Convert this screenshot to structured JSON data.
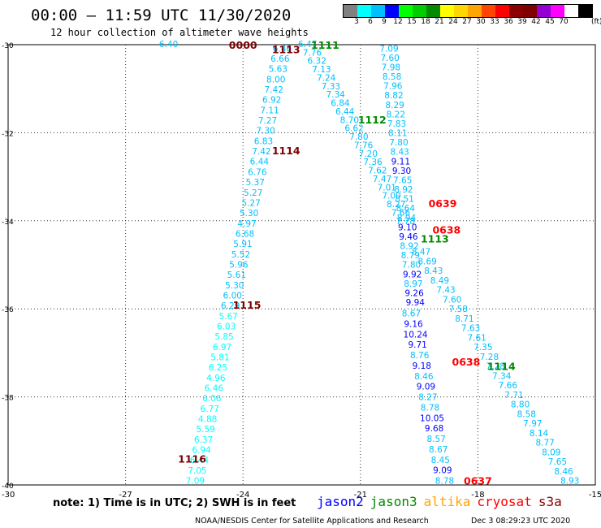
{
  "title": "00:00 – 11:59 UTC 11/30/2020",
  "subtitle": "12 hour collection of altimeter wave heights",
  "legend": {
    "unit": "(ft)",
    "colors": [
      "#808080",
      "#00ffff",
      "#00bfff",
      "#0000ff",
      "#00ff00",
      "#00cd00",
      "#008b00",
      "#ffff00",
      "#ffd700",
      "#ffa500",
      "#ff4500",
      "#ff0000",
      "#8b0000",
      "#800000",
      "#9400d3",
      "#ff00ff",
      "#ffffff",
      "#000000"
    ],
    "labels": [
      "3",
      "6",
      "9",
      "12",
      "15",
      "18",
      "21",
      "24",
      "27",
      "30",
      "33",
      "36",
      "39",
      "42",
      "45",
      "70"
    ]
  },
  "chart_data": {
    "type": "scatter",
    "xlim": [
      -30,
      -15
    ],
    "ylim": [
      -40,
      -30
    ],
    "x_ticks": [
      "-27",
      "-24",
      "-21",
      "-18",
      "-15"
    ],
    "y_ticks": [
      "-30",
      "-32",
      "-34",
      "-36",
      "-38",
      "-40"
    ],
    "x_tick_values": [
      -27,
      -24,
      -21,
      -18,
      -15
    ],
    "y_tick_values": [
      -30,
      -32,
      -34,
      -36,
      -38,
      -40
    ],
    "corner_label": "-30",
    "grid": true,
    "time_labels": [
      {
        "text": "0000",
        "lon": -24.0,
        "lat": -30.0,
        "color": "#800000"
      },
      {
        "text": "1113",
        "lon": -22.9,
        "lat": -30.1,
        "color": "#800000"
      },
      {
        "text": "1111",
        "lon": -21.9,
        "lat": -30.0,
        "color": "#008b00"
      },
      {
        "text": "1112",
        "lon": -20.7,
        "lat": -31.7,
        "color": "#008b00"
      },
      {
        "text": "1114",
        "lon": -22.9,
        "lat": -32.4,
        "color": "#800000"
      },
      {
        "text": "0639",
        "lon": -18.9,
        "lat": -33.6,
        "color": "#ff0000"
      },
      {
        "text": "0638",
        "lon": -18.8,
        "lat": -34.2,
        "color": "#ff0000"
      },
      {
        "text": "1113",
        "lon": -19.1,
        "lat": -34.4,
        "color": "#008b00"
      },
      {
        "text": "1115",
        "lon": -23.9,
        "lat": -35.9,
        "color": "#800000"
      },
      {
        "text": "0638",
        "lon": -18.3,
        "lat": -37.2,
        "color": "#ff0000"
      },
      {
        "text": "1114",
        "lon": -17.4,
        "lat": -37.3,
        "color": "#008b00"
      },
      {
        "text": "1116",
        "lon": -25.3,
        "lat": -39.4,
        "color": "#800000"
      },
      {
        "text": "0637",
        "lon": -18.0,
        "lat": -39.9,
        "color": "#ff0000"
      }
    ],
    "tracks": [
      {
        "start": [
          -25.9,
          -29.98
        ],
        "end": [
          -26.0,
          -30.0
        ],
        "values": [
          {
            "v": "6.40",
            "c": "#00bfff"
          }
        ]
      },
      {
        "start": [
          -23.0,
          -30.08
        ],
        "end": [
          -25.22,
          -39.9
        ],
        "values": [
          {
            "v": "6.46",
            "c": "#00bfff"
          },
          {
            "v": "6.66",
            "c": "#00bfff"
          },
          {
            "v": "5.63",
            "c": "#00bfff"
          },
          {
            "v": "8.00",
            "c": "#00bfff"
          },
          {
            "v": "7.42",
            "c": "#00bfff"
          },
          {
            "v": "6.92",
            "c": "#00bfff"
          },
          {
            "v": "7.11",
            "c": "#00bfff"
          },
          {
            "v": "7.27",
            "c": "#00bfff"
          },
          {
            "v": "7.30",
            "c": "#00bfff"
          },
          {
            "v": "6.83",
            "c": "#00bfff"
          },
          {
            "v": "7.42",
            "c": "#00bfff"
          },
          {
            "v": "6.44",
            "c": "#00bfff"
          },
          {
            "v": "6.76",
            "c": "#00bfff"
          },
          {
            "v": "5.37",
            "c": "#00bfff"
          },
          {
            "v": "5.27",
            "c": "#00bfff"
          },
          {
            "v": "5.27",
            "c": "#00bfff"
          },
          {
            "v": "5.30",
            "c": "#00bfff"
          },
          {
            "v": "4.97",
            "c": "#00bfff"
          },
          {
            "v": "6.68",
            "c": "#00bfff"
          },
          {
            "v": "5.91",
            "c": "#00bfff"
          },
          {
            "v": "5.52",
            "c": "#00bfff"
          },
          {
            "v": "5.96",
            "c": "#00bfff"
          },
          {
            "v": "5.61",
            "c": "#00bfff"
          },
          {
            "v": "5.30",
            "c": "#00bfff"
          },
          {
            "v": "6.00",
            "c": "#00bfff"
          },
          {
            "v": "6.29",
            "c": "#00bfff"
          },
          {
            "v": "5.67",
            "c": "#00ffff"
          },
          {
            "v": "6.03",
            "c": "#00ffff"
          },
          {
            "v": "5.85",
            "c": "#00ffff"
          },
          {
            "v": "6.97",
            "c": "#00ffff"
          },
          {
            "v": "5.81",
            "c": "#00ffff"
          },
          {
            "v": "6.25",
            "c": "#00ffff"
          },
          {
            "v": "4.96",
            "c": "#00ffff"
          },
          {
            "v": "6.46",
            "c": "#00ffff"
          },
          {
            "v": "6.06",
            "c": "#00ffff"
          },
          {
            "v": "6.77",
            "c": "#00ffff"
          },
          {
            "v": "4.88",
            "c": "#00ffff"
          },
          {
            "v": "5.59",
            "c": "#00ffff"
          },
          {
            "v": "6.37",
            "c": "#00ffff"
          },
          {
            "v": "6.94",
            "c": "#00ffff"
          },
          {
            "v": "6.44",
            "c": "#00ffff"
          },
          {
            "v": "7.05",
            "c": "#00ffff"
          },
          {
            "v": "7.09",
            "c": "#00ffff"
          }
        ]
      },
      {
        "start": [
          -22.35,
          -29.98
        ],
        "end": [
          -19.85,
          -34.0
        ],
        "values": [
          {
            "v": "6.47",
            "c": "#00bfff"
          },
          {
            "v": "7.76",
            "c": "#00bfff"
          },
          {
            "v": "6.32",
            "c": "#00bfff"
          },
          {
            "v": "7.13",
            "c": "#00bfff"
          },
          {
            "v": "7.24",
            "c": "#00bfff"
          },
          {
            "v": "7.33",
            "c": "#00bfff"
          },
          {
            "v": "7.34",
            "c": "#00bfff"
          },
          {
            "v": "6.84",
            "c": "#00bfff"
          },
          {
            "v": "6.44",
            "c": "#00bfff"
          },
          {
            "v": "8.70",
            "c": "#00bfff"
          },
          {
            "v": "6.62",
            "c": "#00bfff"
          },
          {
            "v": "7.80",
            "c": "#00bfff"
          },
          {
            "v": "7.76",
            "c": "#00bfff"
          },
          {
            "v": "7.20",
            "c": "#00bfff"
          },
          {
            "v": "7.36",
            "c": "#00bfff"
          },
          {
            "v": "7.62",
            "c": "#00bfff"
          },
          {
            "v": "7.47",
            "c": "#00bfff"
          },
          {
            "v": "7.01",
            "c": "#00bfff"
          },
          {
            "v": "7.00",
            "c": "#00bfff"
          },
          {
            "v": "8.27",
            "c": "#00bfff"
          },
          {
            "v": "7.66",
            "c": "#00bfff"
          },
          {
            "v": "7.78",
            "c": "#00bfff"
          }
        ]
      },
      {
        "start": [
          -20.27,
          -30.08
        ],
        "end": [
          -19.6,
          -35.85
        ],
        "values": [
          {
            "v": "7.09",
            "c": "#00bfff"
          },
          {
            "v": "7.60",
            "c": "#00bfff"
          },
          {
            "v": "7.98",
            "c": "#00bfff"
          },
          {
            "v": "8.58",
            "c": "#00bfff"
          },
          {
            "v": "7.96",
            "c": "#00bfff"
          },
          {
            "v": "8.82",
            "c": "#00bfff"
          },
          {
            "v": "8.29",
            "c": "#00bfff"
          },
          {
            "v": "8.22",
            "c": "#00bfff"
          },
          {
            "v": "7.83",
            "c": "#00bfff"
          },
          {
            "v": "8.11",
            "c": "#00bfff"
          },
          {
            "v": "7.80",
            "c": "#00bfff"
          },
          {
            "v": "8.43",
            "c": "#00bfff"
          },
          {
            "v": "9.11",
            "c": "#0000ff"
          },
          {
            "v": "9.30",
            "c": "#0000ff"
          },
          {
            "v": "7.65",
            "c": "#00bfff"
          },
          {
            "v": "8.92",
            "c": "#00bfff"
          },
          {
            "v": "8.51",
            "c": "#00bfff"
          },
          {
            "v": "8.64",
            "c": "#00bfff"
          },
          {
            "v": "8.94",
            "c": "#00bfff"
          },
          {
            "v": "9.10",
            "c": "#0000ff"
          },
          {
            "v": "9.46",
            "c": "#0000ff"
          },
          {
            "v": "8.92",
            "c": "#00bfff"
          },
          {
            "v": "8.79",
            "c": "#00bfff"
          },
          {
            "v": "7.80",
            "c": "#00bfff"
          },
          {
            "v": "9.92",
            "c": "#0000ff"
          },
          {
            "v": "8.97",
            "c": "#00bfff"
          },
          {
            "v": "9.26",
            "c": "#0000ff"
          },
          {
            "v": "9.94",
            "c": "#0000ff"
          }
        ]
      },
      {
        "start": [
          -19.7,
          -36.1
        ],
        "end": [
          -18.85,
          -39.9
        ],
        "values": [
          {
            "v": "8.67",
            "c": "#00bfff"
          },
          {
            "v": "9.16",
            "c": "#0000ff"
          },
          {
            "v": "10.24",
            "c": "#0000ff"
          },
          {
            "v": "9.71",
            "c": "#0000ff"
          },
          {
            "v": "8.76",
            "c": "#00bfff"
          },
          {
            "v": "9.18",
            "c": "#0000ff"
          },
          {
            "v": "8.46",
            "c": "#00bfff"
          },
          {
            "v": "9.09",
            "c": "#0000ff"
          },
          {
            "v": "8.27",
            "c": "#00bfff"
          },
          {
            "v": "8.78",
            "c": "#00bfff"
          },
          {
            "v": "10.05",
            "c": "#0000ff"
          },
          {
            "v": "9.68",
            "c": "#0000ff"
          },
          {
            "v": "8.57",
            "c": "#00bfff"
          },
          {
            "v": "8.67",
            "c": "#00bfff"
          },
          {
            "v": "8.45",
            "c": "#00bfff"
          },
          {
            "v": "9.09",
            "c": "#0000ff"
          },
          {
            "v": "8.78",
            "c": "#00bfff"
          }
        ]
      },
      {
        "start": [
          -19.45,
          -34.7
        ],
        "end": [
          -15.65,
          -39.9
        ],
        "values": [
          {
            "v": "8.47",
            "c": "#00bfff"
          },
          {
            "v": "8.69",
            "c": "#00bfff"
          },
          {
            "v": "8.43",
            "c": "#00bfff"
          },
          {
            "v": "8.49",
            "c": "#00bfff"
          },
          {
            "v": "7.43",
            "c": "#00bfff"
          },
          {
            "v": "7.60",
            "c": "#00bfff"
          },
          {
            "v": "7.58",
            "c": "#00bfff"
          },
          {
            "v": "8.71",
            "c": "#00bfff"
          },
          {
            "v": "7.63",
            "c": "#00bfff"
          },
          {
            "v": "7.61",
            "c": "#00bfff"
          },
          {
            "v": "7.35",
            "c": "#00bfff"
          },
          {
            "v": "7.28",
            "c": "#00bfff"
          },
          {
            "v": "7.28",
            "c": "#00bfff"
          },
          {
            "v": "7.34",
            "c": "#00bfff"
          },
          {
            "v": "7.66",
            "c": "#00bfff"
          },
          {
            "v": "7.71",
            "c": "#00bfff"
          },
          {
            "v": "8.80",
            "c": "#00bfff"
          },
          {
            "v": "8.58",
            "c": "#00bfff"
          },
          {
            "v": "7.97",
            "c": "#00bfff"
          },
          {
            "v": "8.14",
            "c": "#00bfff"
          },
          {
            "v": "8.77",
            "c": "#00bfff"
          },
          {
            "v": "8.09",
            "c": "#00bfff"
          },
          {
            "v": "7.65",
            "c": "#00bfff"
          },
          {
            "v": "8.46",
            "c": "#00bfff"
          },
          {
            "v": "8.93",
            "c": "#00bfff"
          }
        ]
      }
    ]
  },
  "note": "note: 1) Time is in UTC; 2) SWH is in feet",
  "satellites": [
    {
      "name": "jason2",
      "color": "#0000ff"
    },
    {
      "name": "jason3",
      "color": "#008b00"
    },
    {
      "name": "altika",
      "color": "#ffa500"
    },
    {
      "name": "cryosat",
      "color": "#ff0000"
    },
    {
      "name": "s3a",
      "color": "#8b0000"
    }
  ],
  "credit": "NOAA/NESDIS Center for Satellite Applications and Research",
  "generated": "Dec  3 08:29:23 UTC 2020"
}
